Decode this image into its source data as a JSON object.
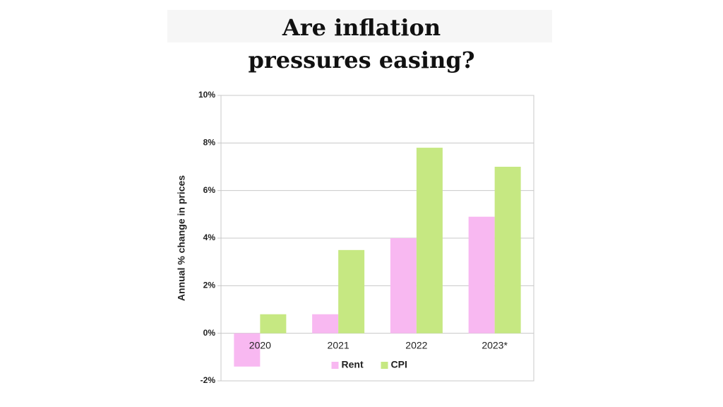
{
  "chart_data": {
    "type": "bar",
    "title": "Are inflation pressures easing?",
    "y_label": "Annual % change in prices",
    "categories": [
      "2020",
      "2021",
      "2022",
      "2023*"
    ],
    "series": [
      {
        "name": "Rent",
        "color": "#f8b8f1",
        "values": [
          -1.4,
          0.8,
          4.0,
          4.9
        ]
      },
      {
        "name": "CPI",
        "color": "#c6e882",
        "values": [
          0.8,
          3.5,
          7.8,
          7.0
        ]
      }
    ],
    "ylim": [
      -2,
      10
    ],
    "yticks": [
      {
        "value": -2,
        "label": "-2%"
      },
      {
        "value": 0,
        "label": "0%"
      },
      {
        "value": 2,
        "label": "2%"
      },
      {
        "value": 4,
        "label": "4%"
      },
      {
        "value": 6,
        "label": "6%"
      },
      {
        "value": 8,
        "label": "8%"
      },
      {
        "value": 10,
        "label": "10%"
      }
    ],
    "grid": true,
    "legend": "bottom"
  }
}
